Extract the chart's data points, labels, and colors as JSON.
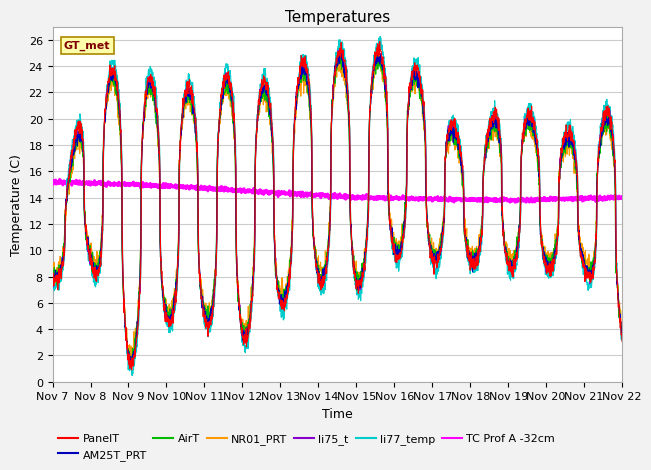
{
  "title": "Temperatures",
  "xlabel": "Time",
  "ylabel": "Temperature (C)",
  "annotation": "GT_met",
  "ylim": [
    0,
    27
  ],
  "yticks": [
    0,
    2,
    4,
    6,
    8,
    10,
    12,
    14,
    16,
    18,
    20,
    22,
    24,
    26
  ],
  "xtick_labels": [
    "Nov 7",
    "Nov 8",
    "Nov 9",
    "Nov 10",
    "Nov 11",
    "Nov 12",
    "Nov 13",
    "Nov 14",
    "Nov 15",
    "Nov 16",
    "Nov 17",
    "Nov 18",
    "Nov 19",
    "Nov 20",
    "Nov 21",
    "Nov 22"
  ],
  "series_colors": {
    "PanelT": "#ff0000",
    "AM25T_PRT": "#0000bb",
    "AirT": "#00bb00",
    "NR01_PRT": "#ff9900",
    "li75_t": "#8800cc",
    "li77_temp": "#00cccc",
    "TC_Prof_A": "#ff00ff"
  },
  "background_color": "#e8e8e8",
  "plot_bg": "#ffffff",
  "grid_color": "#d0d0d0",
  "title_fontsize": 11,
  "label_fontsize": 9,
  "tick_fontsize": 8,
  "legend_fontsize": 8
}
